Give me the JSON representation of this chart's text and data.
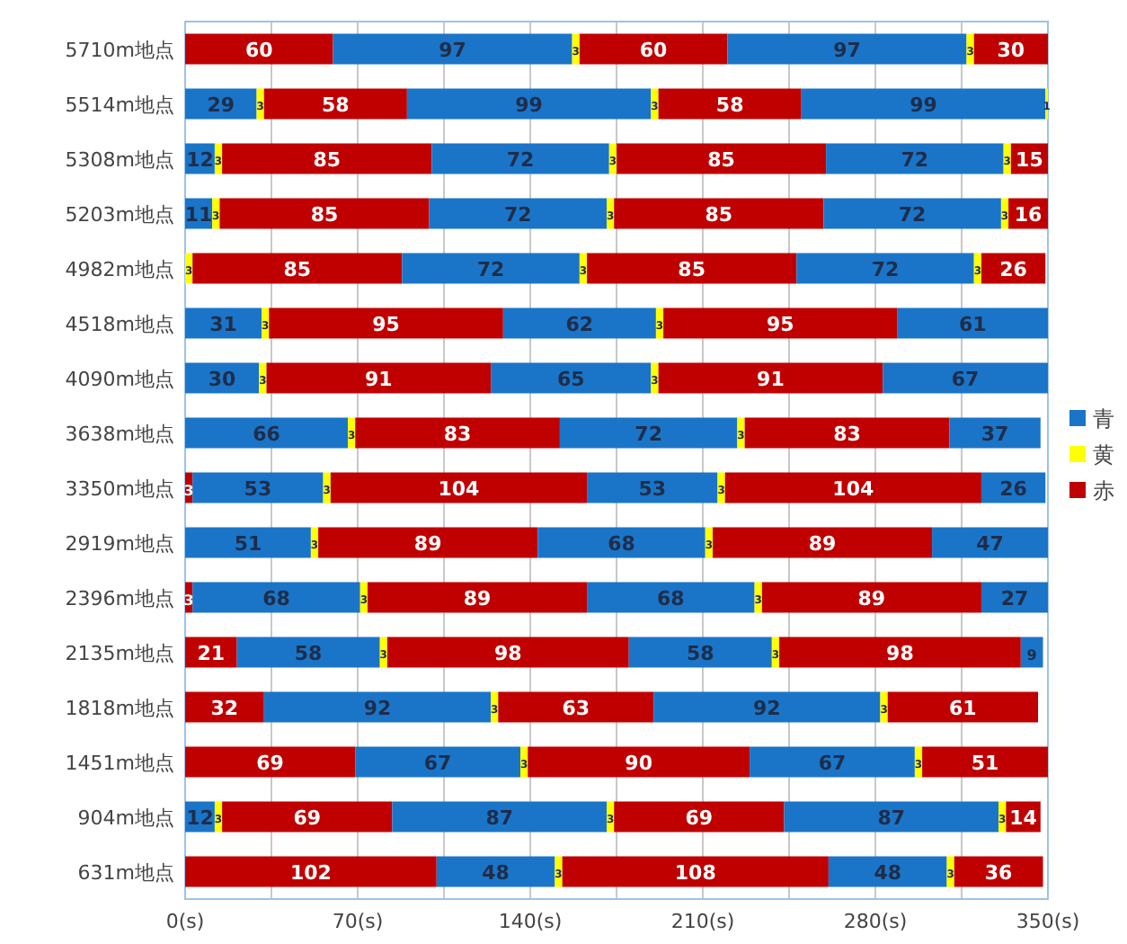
{
  "chart_data": {
    "type": "bar",
    "orientation": "horizontal",
    "stacked": true,
    "data_labels": true,
    "grid": "x",
    "legend": "right",
    "categories": [
      "5710m地点",
      "5514m地点",
      "5308m地点",
      "5203m地点",
      "4982m地点",
      "4518m地点",
      "4090m地点",
      "3638m地点",
      "3350m地点",
      "2919m地点",
      "2396m地点",
      "2135m地点",
      "1818m地点",
      "1451m地点",
      "904m地点",
      "631m地点"
    ],
    "xlim": [
      0,
      350
    ],
    "xticks": [
      {
        "value": 0,
        "label": "0(s)"
      },
      {
        "value": 35,
        "label": null
      },
      {
        "value": 70,
        "label": "70(s)"
      },
      {
        "value": 105,
        "label": null
      },
      {
        "value": 140,
        "label": "140(s)"
      },
      {
        "value": 175,
        "label": null
      },
      {
        "value": 210,
        "label": "210(s)"
      },
      {
        "value": 245,
        "label": null
      },
      {
        "value": 280,
        "label": "280(s)"
      },
      {
        "value": 315,
        "label": null
      },
      {
        "value": 350,
        "label": "350(s)"
      }
    ],
    "series": [
      {
        "name": "赤",
        "color": "#c00000",
        "values": [
          60,
          null,
          null,
          null,
          null,
          null,
          null,
          null,
          3,
          null,
          3,
          21,
          32,
          69,
          null,
          102
        ]
      },
      {
        "name": "青",
        "color": "#1a75c8",
        "values": [
          97,
          29,
          12,
          11,
          null,
          31,
          30,
          66,
          53,
          51,
          68,
          58,
          92,
          67,
          12,
          48
        ]
      },
      {
        "name": "黄",
        "color": "#ffff00",
        "values": [
          3,
          3,
          3,
          3,
          3,
          3,
          3,
          3,
          3,
          3,
          3,
          3,
          3,
          3,
          3,
          3
        ]
      },
      {
        "color": "#c00000",
        "values": [
          60,
          58,
          85,
          85,
          85,
          95,
          91,
          83,
          104,
          89,
          89,
          98,
          63,
          90,
          69,
          108
        ]
      },
      {
        "color": "#1a75c8",
        "values": [
          97,
          99,
          72,
          72,
          72,
          62,
          65,
          72,
          53,
          68,
          68,
          58,
          92,
          67,
          87,
          48
        ]
      },
      {
        "color": "#ffff00",
        "values": [
          3,
          3,
          3,
          3,
          3,
          3,
          3,
          3,
          3,
          3,
          3,
          3,
          3,
          3,
          3,
          3
        ]
      },
      {
        "color": "#c00000",
        "values": [
          30,
          58,
          85,
          85,
          85,
          95,
          91,
          83,
          104,
          89,
          89,
          98,
          61,
          51,
          69,
          36
        ]
      },
      {
        "color": "#1a75c8",
        "values": [
          null,
          99,
          72,
          72,
          72,
          61,
          67,
          37,
          26,
          47,
          27,
          9,
          null,
          null,
          87,
          null
        ]
      },
      {
        "color": "#ffff00",
        "values": [
          null,
          1,
          3,
          3,
          3,
          null,
          null,
          null,
          null,
          null,
          null,
          null,
          null,
          null,
          3,
          null
        ]
      },
      {
        "color": "#c00000",
        "values": [
          null,
          null,
          15,
          16,
          26,
          null,
          null,
          null,
          null,
          null,
          null,
          null,
          null,
          null,
          14,
          null
        ]
      }
    ]
  }
}
